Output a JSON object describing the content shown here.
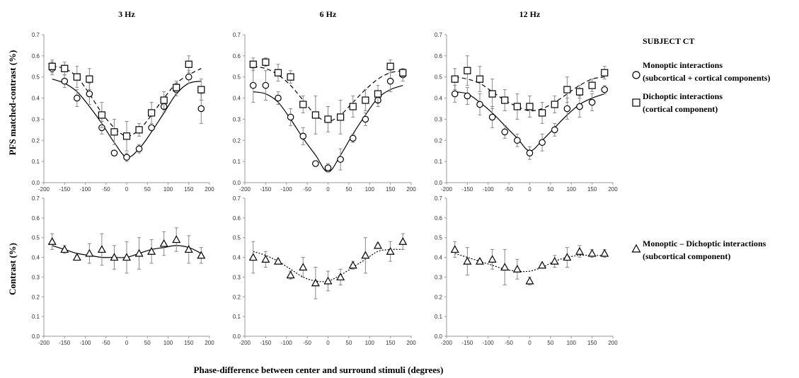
{
  "figure": {
    "ylabel_top": "PFS matched-contrast (%)",
    "ylabel_bottom": "Contrast (%)",
    "xlabel": "Phase-difference between center and surround stimuli (degrees)"
  },
  "legend": {
    "subject": "SUBJECT CT",
    "items": [
      {
        "marker": "circle",
        "line1": "Monoptic interactions",
        "line2": "(subcortical + cortical components)"
      },
      {
        "marker": "square",
        "line1": "Dichoptic interactions",
        "line2": "(cortical component)"
      },
      {
        "marker": "triangle",
        "line1": "Monoptic – Dichoptic interactions",
        "line2": "(subcortical component)"
      }
    ]
  },
  "chart_data": [
    {
      "type": "scatter",
      "panel": "top-3Hz",
      "title": "3 Hz",
      "xlim": [
        -200,
        200
      ],
      "ylim": [
        0,
        0.7
      ],
      "xticks": [
        -200,
        -150,
        -100,
        -50,
        0,
        50,
        100,
        150,
        200
      ],
      "yticks": [
        0,
        0.1,
        0.2,
        0.3,
        0.4,
        0.5,
        0.6,
        0.7
      ],
      "x": [
        -180,
        -150,
        -120,
        -90,
        -60,
        -30,
        0,
        30,
        60,
        90,
        120,
        150,
        180
      ],
      "series": [
        {
          "marker": "circle",
          "values": [
            0.54,
            0.48,
            0.4,
            0.42,
            0.26,
            0.14,
            0.12,
            0.16,
            0.26,
            0.36,
            0.44,
            0.5,
            0.35
          ],
          "err": [
            0.03,
            0.03,
            0.04,
            0.05,
            0.03,
            0.01,
            0.02,
            0.02,
            0.01,
            0.03,
            0.03,
            0.03,
            0.07
          ]
        },
        {
          "marker": "square",
          "values": [
            0.55,
            0.54,
            0.5,
            0.49,
            0.32,
            0.24,
            0.22,
            0.25,
            0.33,
            0.39,
            0.45,
            0.56,
            0.44
          ],
          "err": [
            0.03,
            0.03,
            0.05,
            0.05,
            0.06,
            0.06,
            0.07,
            0.03,
            0.05,
            0.04,
            0.03,
            0.04,
            0.05
          ]
        }
      ],
      "fits": [
        {
          "style": "solid",
          "values": [
            0.49,
            0.47,
            0.43,
            0.36,
            0.28,
            0.19,
            0.12,
            0.16,
            0.24,
            0.33,
            0.42,
            0.47,
            0.48
          ]
        },
        {
          "style": "dashed",
          "values": [
            0.55,
            0.54,
            0.5,
            0.42,
            0.33,
            0.26,
            0.22,
            0.25,
            0.32,
            0.4,
            0.47,
            0.51,
            0.54
          ]
        }
      ]
    },
    {
      "type": "scatter",
      "panel": "top-6Hz",
      "title": "6 Hz",
      "xlim": [
        -200,
        200
      ],
      "ylim": [
        0,
        0.7
      ],
      "xticks": [
        -200,
        -150,
        -100,
        -50,
        0,
        50,
        100,
        150,
        200
      ],
      "yticks": [
        0,
        0.1,
        0.2,
        0.3,
        0.4,
        0.5,
        0.6,
        0.7
      ],
      "x": [
        -180,
        -150,
        -120,
        -90,
        -60,
        -30,
        0,
        30,
        60,
        90,
        120,
        150,
        180
      ],
      "series": [
        {
          "marker": "circle",
          "values": [
            0.46,
            0.46,
            0.4,
            0.31,
            0.22,
            0.09,
            0.07,
            0.11,
            0.21,
            0.3,
            0.39,
            0.48,
            0.51
          ],
          "err": [
            0.08,
            0.07,
            0.03,
            0.04,
            0.04,
            0.01,
            0.02,
            0.05,
            0.02,
            0.03,
            0.03,
            0.05,
            0.03
          ]
        },
        {
          "marker": "square",
          "values": [
            0.56,
            0.57,
            0.52,
            0.5,
            0.37,
            0.32,
            0.3,
            0.31,
            0.36,
            0.39,
            0.42,
            0.55,
            0.52
          ],
          "err": [
            0.03,
            0.02,
            0.04,
            0.03,
            0.04,
            0.09,
            0.06,
            0.08,
            0.05,
            0.05,
            0.04,
            0.03,
            0.02
          ]
        }
      ],
      "fits": [
        {
          "style": "solid",
          "values": [
            0.43,
            0.42,
            0.38,
            0.3,
            0.21,
            0.13,
            0.05,
            0.13,
            0.23,
            0.32,
            0.4,
            0.44,
            0.46
          ]
        },
        {
          "style": "dashed",
          "values": [
            0.55,
            0.54,
            0.51,
            0.46,
            0.39,
            0.32,
            0.29,
            0.32,
            0.38,
            0.44,
            0.49,
            0.52,
            0.53
          ]
        }
      ]
    },
    {
      "type": "scatter",
      "panel": "top-12Hz",
      "title": "12 Hz",
      "xlim": [
        -200,
        200
      ],
      "ylim": [
        0,
        0.7
      ],
      "xticks": [
        -200,
        -150,
        -100,
        -50,
        0,
        50,
        100,
        150,
        200
      ],
      "yticks": [
        0,
        0.1,
        0.2,
        0.3,
        0.4,
        0.5,
        0.6,
        0.7
      ],
      "x": [
        -180,
        -150,
        -120,
        -90,
        -60,
        -30,
        0,
        30,
        60,
        90,
        120,
        150,
        180
      ],
      "series": [
        {
          "marker": "circle",
          "values": [
            0.42,
            0.41,
            0.37,
            0.31,
            0.24,
            0.2,
            0.14,
            0.19,
            0.25,
            0.35,
            0.36,
            0.38,
            0.44
          ],
          "err": [
            0.04,
            0.04,
            0.05,
            0.05,
            0.03,
            0.03,
            0.03,
            0.04,
            0.03,
            0.05,
            0.05,
            0.04,
            0.02
          ]
        },
        {
          "marker": "square",
          "values": [
            0.49,
            0.53,
            0.49,
            0.42,
            0.39,
            0.36,
            0.36,
            0.33,
            0.37,
            0.44,
            0.43,
            0.46,
            0.52
          ],
          "err": [
            0.05,
            0.07,
            0.06,
            0.07,
            0.05,
            0.06,
            0.05,
            0.05,
            0.04,
            0.06,
            0.03,
            0.03,
            0.03
          ]
        }
      ],
      "fits": [
        {
          "style": "solid",
          "values": [
            0.43,
            0.42,
            0.38,
            0.33,
            0.27,
            0.21,
            0.15,
            0.2,
            0.26,
            0.32,
            0.37,
            0.4,
            0.42
          ]
        },
        {
          "style": "dashed",
          "values": [
            0.5,
            0.49,
            0.47,
            0.43,
            0.39,
            0.36,
            0.34,
            0.35,
            0.38,
            0.42,
            0.46,
            0.49,
            0.5
          ]
        }
      ]
    },
    {
      "type": "scatter",
      "panel": "bottom-3Hz",
      "xlim": [
        -200,
        200
      ],
      "ylim": [
        0,
        0.7
      ],
      "xticks": [
        -200,
        -150,
        -100,
        -50,
        0,
        50,
        100,
        150,
        200
      ],
      "yticks": [
        0,
        0.1,
        0.2,
        0.3,
        0.4,
        0.5,
        0.6,
        0.7
      ],
      "x": [
        -180,
        -150,
        -120,
        -90,
        -60,
        -30,
        0,
        30,
        60,
        90,
        120,
        150,
        180
      ],
      "series": [
        {
          "marker": "triangle",
          "values": [
            0.48,
            0.44,
            0.4,
            0.42,
            0.44,
            0.4,
            0.4,
            0.42,
            0.43,
            0.47,
            0.49,
            0.44,
            0.41
          ],
          "err": [
            0.04,
            0.02,
            0.01,
            0.05,
            0.08,
            0.06,
            0.08,
            0.08,
            0.06,
            0.06,
            0.06,
            0.07,
            0.04
          ]
        }
      ],
      "fits": [
        {
          "style": "solid",
          "values": [
            0.46,
            0.44,
            0.42,
            0.41,
            0.4,
            0.4,
            0.4,
            0.42,
            0.44,
            0.45,
            0.46,
            0.45,
            0.42
          ]
        }
      ]
    },
    {
      "type": "scatter",
      "panel": "bottom-6Hz",
      "xlim": [
        -200,
        200
      ],
      "ylim": [
        0,
        0.7
      ],
      "xticks": [
        -200,
        -150,
        -100,
        -50,
        0,
        50,
        100,
        150,
        200
      ],
      "yticks": [
        0,
        0.1,
        0.2,
        0.3,
        0.4,
        0.5,
        0.6,
        0.7
      ],
      "x": [
        -180,
        -150,
        -120,
        -90,
        -60,
        -30,
        0,
        30,
        60,
        90,
        120,
        150,
        180
      ],
      "series": [
        {
          "marker": "triangle",
          "values": [
            0.4,
            0.39,
            0.38,
            0.31,
            0.35,
            0.27,
            0.28,
            0.3,
            0.36,
            0.41,
            0.46,
            0.43,
            0.48
          ],
          "err": [
            0.08,
            0.04,
            0.01,
            0.02,
            0.05,
            0.08,
            0.05,
            0.04,
            0.02,
            0.09,
            0.01,
            0.05,
            0.04
          ]
        }
      ],
      "fits": [
        {
          "style": "dotted",
          "values": [
            0.43,
            0.41,
            0.38,
            0.34,
            0.3,
            0.28,
            0.28,
            0.31,
            0.35,
            0.39,
            0.43,
            0.44,
            0.44
          ]
        }
      ]
    },
    {
      "type": "scatter",
      "panel": "bottom-12Hz",
      "xlim": [
        -200,
        200
      ],
      "ylim": [
        0,
        0.7
      ],
      "xticks": [
        -200,
        -150,
        -100,
        -50,
        0,
        50,
        100,
        150,
        200
      ],
      "yticks": [
        0,
        0.1,
        0.2,
        0.3,
        0.4,
        0.5,
        0.6,
        0.7
      ],
      "x": [
        -180,
        -150,
        -120,
        -90,
        -60,
        -30,
        0,
        30,
        60,
        90,
        120,
        150,
        180
      ],
      "series": [
        {
          "marker": "triangle",
          "values": [
            0.44,
            0.38,
            0.38,
            0.39,
            0.35,
            0.34,
            0.28,
            0.36,
            0.38,
            0.4,
            0.43,
            0.42,
            0.42
          ],
          "err": [
            0.04,
            0.07,
            0.01,
            0.05,
            0.09,
            0.05,
            0.02,
            0.01,
            0.03,
            0.05,
            0.03,
            0.02,
            0.02
          ]
        }
      ],
      "fits": [
        {
          "style": "dotted",
          "values": [
            0.42,
            0.4,
            0.38,
            0.36,
            0.34,
            0.33,
            0.33,
            0.35,
            0.38,
            0.4,
            0.41,
            0.41,
            0.41
          ]
        }
      ]
    }
  ]
}
